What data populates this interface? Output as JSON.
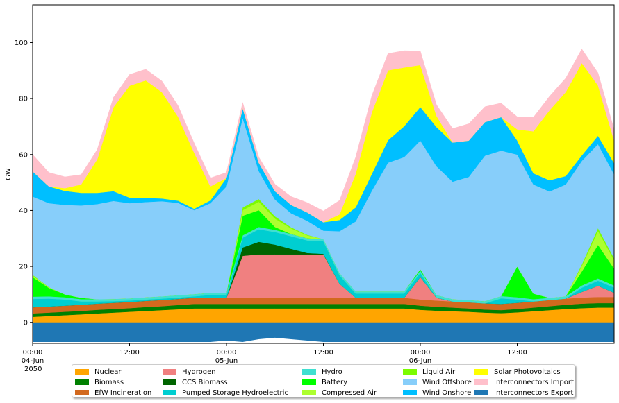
{
  "chart_data": {
    "type": "area",
    "ylabel": "GW",
    "ylim": [
      -7.5,
      113.5
    ],
    "yticks": [
      0,
      20,
      40,
      60,
      80,
      100
    ],
    "xlim_hours": [
      0,
      72
    ],
    "xticks": [
      {
        "hour": 0,
        "label": "00:00\n04-Jun\n2050"
      },
      {
        "hour": 12,
        "label": "12:00"
      },
      {
        "hour": 24,
        "label": "00:00\n05-Jun"
      },
      {
        "hour": 36,
        "label": "12:00"
      },
      {
        "hour": 48,
        "label": "00:00\n06-Jun"
      },
      {
        "hour": 60,
        "label": "12:00"
      }
    ],
    "x_hours": [
      0,
      2,
      4,
      6,
      8,
      10,
      12,
      14,
      16,
      18,
      20,
      22,
      24,
      26,
      28,
      30,
      32,
      34,
      36,
      38,
      40,
      42,
      44,
      46,
      48,
      50,
      52,
      54,
      56,
      58,
      60,
      62,
      64,
      66,
      68,
      70,
      72
    ],
    "series": [
      {
        "name": "Nuclear",
        "color": "#ffa500",
        "values": [
          2,
          2.3,
          2.6,
          2.9,
          3.2,
          3.5,
          3.8,
          4.1,
          4.4,
          4.7,
          5,
          5,
          5,
          5,
          5,
          5,
          5,
          5,
          5,
          5,
          5,
          5,
          5,
          5,
          4.5,
          4.2,
          4,
          3.8,
          3.5,
          3.3,
          3.6,
          4,
          4.4,
          4.8,
          5.1,
          5.3,
          5.3
        ]
      },
      {
        "name": "Biomass",
        "color": "#008000",
        "values": [
          1.2,
          1.2,
          1.2,
          1.2,
          1.3,
          1.3,
          1.3,
          1.4,
          1.4,
          1.5,
          1.6,
          1.6,
          1.6,
          1.6,
          1.6,
          1.6,
          1.6,
          1.6,
          1.6,
          1.6,
          1.6,
          1.6,
          1.6,
          1.6,
          1.5,
          1.4,
          1.3,
          1.2,
          1.1,
          1.1,
          1.2,
          1.3,
          1.4,
          1.5,
          1.6,
          1.6,
          1.6
        ]
      },
      {
        "name": "EfW Incineration",
        "color": "#d2691e",
        "values": [
          2.2,
          2.2,
          2.2,
          2.2,
          2.2,
          2.2,
          2.2,
          2.2,
          2.2,
          2.2,
          2.2,
          2.2,
          2.2,
          2.2,
          2.2,
          2.2,
          2.2,
          2.2,
          2.2,
          2.2,
          2.2,
          2.2,
          2.2,
          2.2,
          2.2,
          2.2,
          2.2,
          2.2,
          2.2,
          2.2,
          2.2,
          2.2,
          2.2,
          2.2,
          2.2,
          2.2,
          2.2
        ]
      },
      {
        "name": "Hydrogen",
        "color": "#f08080",
        "values": [
          0,
          0,
          0,
          0,
          0,
          0,
          0,
          0,
          0,
          0,
          0,
          0,
          0,
          15,
          15.5,
          15.5,
          15.5,
          15.5,
          15.5,
          5,
          0,
          0,
          0,
          0,
          8,
          1,
          0,
          0,
          0,
          0,
          0,
          0,
          0,
          0,
          2,
          4,
          1.5
        ]
      },
      {
        "name": "CCS Biomass",
        "color": "#006400",
        "values": [
          0,
          0,
          0,
          0,
          0,
          0,
          0,
          0,
          0,
          0,
          0,
          0,
          0,
          3,
          4.5,
          3.5,
          2,
          0.5,
          0.2,
          0,
          0,
          0,
          0,
          0,
          0,
          0,
          0,
          0,
          0,
          0,
          0,
          0,
          0,
          0,
          0,
          0,
          0
        ]
      },
      {
        "name": "Pumped Storage Hydroelectric",
        "color": "#00ced1",
        "values": [
          3,
          2.8,
          2.2,
          1.2,
          0.8,
          0.6,
          0.5,
          0.5,
          0.5,
          0.5,
          0.5,
          1,
          1,
          3.5,
          4.5,
          4.5,
          4.5,
          4.5,
          4.5,
          3,
          1.5,
          1.5,
          1.5,
          1.5,
          1.5,
          0.2,
          0,
          0,
          0,
          2,
          1.2,
          0,
          0,
          0,
          1.5,
          1.8,
          1.8
        ]
      },
      {
        "name": "Hydro",
        "color": "#40e0d0",
        "values": [
          0.8,
          0.8,
          0.8,
          0.8,
          0.8,
          0.8,
          0.8,
          0.8,
          0.8,
          0.8,
          0.8,
          0.8,
          0.8,
          0.8,
          0.8,
          0.8,
          0.8,
          0.8,
          0.8,
          0.8,
          0.8,
          0.8,
          0.8,
          0.8,
          0.8,
          0.8,
          0.8,
          0.8,
          0.8,
          0.8,
          0.8,
          0.8,
          0.8,
          0.8,
          0.8,
          0.8,
          0.8
        ]
      },
      {
        "name": "Battery",
        "color": "#00ff00",
        "values": [
          7,
          3,
          1,
          0.5,
          0,
          0,
          0,
          0,
          0,
          0,
          0,
          0,
          0,
          7,
          6,
          1,
          0,
          0,
          0,
          0,
          0,
          0,
          0,
          0,
          0.5,
          0,
          0,
          0,
          0,
          0,
          11,
          2,
          0,
          0,
          5,
          12,
          6
        ]
      },
      {
        "name": "Compressed Air",
        "color": "#adff2f",
        "values": [
          0.5,
          0.2,
          0,
          0,
          0,
          0,
          0,
          0,
          0,
          0,
          0,
          0,
          0,
          2,
          3,
          3,
          2,
          1,
          0,
          0,
          0,
          0,
          0,
          0,
          0,
          0,
          0,
          0,
          0,
          0,
          0,
          0,
          0,
          0,
          2,
          5,
          3
        ]
      },
      {
        "name": "Liquid Air",
        "color": "#7cfc00",
        "values": [
          0.3,
          0.1,
          0,
          0,
          0,
          0,
          0,
          0,
          0,
          0,
          0,
          0,
          0,
          1,
          1,
          0.8,
          0.4,
          0.2,
          0,
          0,
          0,
          0,
          0,
          0,
          0,
          0,
          0,
          0,
          0,
          0,
          0,
          0,
          0,
          0,
          0.5,
          1,
          0.7
        ]
      },
      {
        "name": "Wind Offshore",
        "color": "#87cefa",
        "values": [
          28,
          30,
          32,
          33,
          34,
          35,
          34,
          34,
          34,
          33,
          30,
          32,
          38,
          32,
          10,
          6,
          5,
          5,
          3,
          15,
          25,
          36,
          46,
          48,
          46,
          46,
          42,
          44,
          52,
          52,
          40,
          39,
          38,
          40,
          37,
          30,
          30
        ]
      },
      {
        "name": "Wind Onshore",
        "color": "#00bfff",
        "values": [
          9,
          6,
          5,
          4.5,
          4,
          3.5,
          2,
          1.5,
          1,
          0.8,
          0.5,
          1,
          3,
          3.5,
          3,
          3,
          3,
          3,
          3,
          4,
          5,
          6,
          8,
          11,
          12,
          14,
          14,
          13,
          12,
          12,
          5,
          4,
          4,
          3,
          2,
          3,
          4
        ]
      },
      {
        "name": "Solar Photovoltaics",
        "color": "#ffff00",
        "values": [
          0,
          0,
          1,
          3,
          12,
          30,
          40,
          42,
          38,
          30,
          20,
          5,
          0,
          0,
          0,
          0,
          0,
          0,
          0,
          2,
          12,
          22,
          25,
          21,
          15,
          4,
          0,
          0,
          0,
          0,
          4,
          15,
          25,
          30,
          33,
          18,
          8
        ]
      },
      {
        "name": "Interconnectors Import",
        "color": "#ffc0cb",
        "values": [
          6,
          5,
          4,
          3.5,
          3.5,
          3.5,
          4,
          4,
          4,
          4,
          3.5,
          3,
          2,
          2,
          2,
          2.5,
          3,
          3.5,
          4,
          5,
          6,
          6,
          6,
          6,
          5,
          4,
          5,
          6,
          5.5,
          5,
          4.5,
          5,
          5,
          5,
          5,
          4.5,
          4
        ]
      },
      {
        "name": "Interconnectors Export",
        "color": "#1f77b4",
        "values": [
          -7,
          -7,
          -7,
          -7,
          -7,
          -7,
          -7,
          -7,
          -7,
          -7,
          -7,
          -7,
          -6.5,
          -7,
          -6,
          -5.5,
          -6,
          -6.5,
          -7,
          -7,
          -7,
          -7,
          -7,
          -7,
          -7,
          -7,
          -7,
          -7,
          -7,
          -7,
          -7,
          -7,
          -7,
          -7,
          -7,
          -7,
          -7
        ]
      }
    ]
  }
}
